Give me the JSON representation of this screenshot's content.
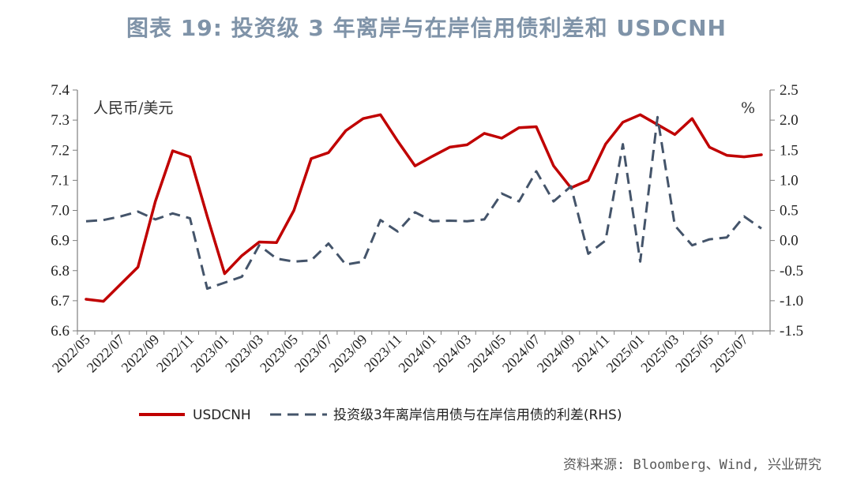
{
  "title": "图表 19: 投资级 3 年离岸与在岸信用债利差和 USDCNH",
  "source": "资料来源: Bloomberg、Wind, 兴业研究",
  "colors": {
    "usdcnh": "#c00000",
    "spread": "#44546a",
    "title": "#7f93a8"
  },
  "chart_data": {
    "type": "line",
    "x": [
      "2022/05",
      "2022/06",
      "2022/07",
      "2022/08",
      "2022/09",
      "2022/10",
      "2022/11",
      "2022/12",
      "2023/01",
      "2023/02",
      "2023/03",
      "2023/04",
      "2023/05",
      "2023/06",
      "2023/07",
      "2023/08",
      "2023/09",
      "2023/10",
      "2023/11",
      "2023/12",
      "2024/01",
      "2024/02",
      "2024/03",
      "2024/04",
      "2024/05",
      "2024/06",
      "2024/07",
      "2024/08",
      "2024/09",
      "2024/10",
      "2024/11",
      "2024/12",
      "2025/01",
      "2025/02",
      "2025/03",
      "2025/04",
      "2025/05",
      "2025/06",
      "2025/07",
      "2025/08"
    ],
    "x_tick_labels": [
      "2022/05",
      "2022/07",
      "2022/09",
      "2022/11",
      "2023/01",
      "2023/03",
      "2023/05",
      "2023/07",
      "2023/09",
      "2023/11",
      "2024/01",
      "2024/03",
      "2024/05",
      "2024/07",
      "2024/09",
      "2024/11",
      "2025/01",
      "2025/03",
      "2025/05",
      "2025/07"
    ],
    "left_axis": {
      "unit_label": "人民币/美元",
      "ylim": [
        6.6,
        7.4
      ],
      "ticks": [
        "6.6",
        "6.7",
        "6.8",
        "6.9",
        "7.0",
        "7.1",
        "7.2",
        "7.3",
        "7.4"
      ]
    },
    "right_axis": {
      "unit_label": "%",
      "ylim": [
        -1.5,
        2.5
      ],
      "ticks": [
        "-1.5",
        "-1.0",
        "-0.5",
        "0.0",
        "0.5",
        "1.0",
        "1.5",
        "2.0",
        "2.5"
      ]
    },
    "series": [
      {
        "name": "USDCNH",
        "axis": "left",
        "style": "solid",
        "points": [
          [
            "2022/05",
            6.705
          ],
          [
            "2022/06",
            6.698
          ],
          [
            "2022/07",
            6.755
          ],
          [
            "2022/08",
            6.812
          ],
          [
            "2022/09",
            7.03
          ],
          [
            "2022/10",
            7.198
          ],
          [
            "2022/11",
            7.178
          ],
          [
            "2022/12",
            6.98
          ],
          [
            "2023/01",
            6.79
          ],
          [
            "2023/02",
            6.85
          ],
          [
            "2023/03",
            6.895
          ],
          [
            "2023/04",
            6.893
          ],
          [
            "2023/05",
            7.0
          ],
          [
            "2023/06",
            7.172
          ],
          [
            "2023/07",
            7.192
          ],
          [
            "2023/08",
            7.265
          ],
          [
            "2023/09",
            7.305
          ],
          [
            "2023/10",
            7.318
          ],
          [
            "2023/11",
            7.23
          ],
          [
            "2023/12",
            7.148
          ],
          [
            "2024/01",
            7.18
          ],
          [
            "2024/02",
            7.21
          ],
          [
            "2024/03",
            7.218
          ],
          [
            "2024/04",
            7.256
          ],
          [
            "2024/05",
            7.24
          ],
          [
            "2024/06",
            7.275
          ],
          [
            "2024/07",
            7.278
          ],
          [
            "2024/08",
            7.148
          ],
          [
            "2024/09",
            7.075
          ],
          [
            "2024/10",
            7.1
          ],
          [
            "2024/11",
            7.22
          ],
          [
            "2024/12",
            7.293
          ],
          [
            "2025/01",
            7.318
          ],
          [
            "2025/02",
            7.285
          ],
          [
            "2025/03",
            7.252
          ],
          [
            "2025/04",
            7.305
          ],
          [
            "2025/05",
            7.21
          ],
          [
            "2025/06",
            7.183
          ],
          [
            "2025/07",
            7.178
          ],
          [
            "2025/08",
            7.185
          ]
        ]
      },
      {
        "name": "投资级3年离岸信用债与在岸信用债的利差(RHS)",
        "axis": "right",
        "style": "dashed",
        "points": [
          [
            "2022/05",
            0.32
          ],
          [
            "2022/06",
            0.34
          ],
          [
            "2022/07",
            0.4
          ],
          [
            "2022/08",
            0.48
          ],
          [
            "2022/09",
            0.35
          ],
          [
            "2022/10",
            0.45
          ],
          [
            "2022/11",
            0.37
          ],
          [
            "2022/12",
            -0.8
          ],
          [
            "2023/01",
            -0.7
          ],
          [
            "2023/02",
            -0.6
          ],
          [
            "2023/03",
            -0.08
          ],
          [
            "2023/04",
            -0.3
          ],
          [
            "2023/05",
            -0.35
          ],
          [
            "2023/06",
            -0.33
          ],
          [
            "2023/07",
            -0.05
          ],
          [
            "2023/08",
            -0.4
          ],
          [
            "2023/09",
            -0.35
          ],
          [
            "2023/10",
            0.34
          ],
          [
            "2023/11",
            0.15
          ],
          [
            "2023/12",
            0.47
          ],
          [
            "2024/01",
            0.32
          ],
          [
            "2024/02",
            0.33
          ],
          [
            "2024/03",
            0.32
          ],
          [
            "2024/04",
            0.35
          ],
          [
            "2024/05",
            0.78
          ],
          [
            "2024/06",
            0.65
          ],
          [
            "2024/07",
            1.15
          ],
          [
            "2024/08",
            0.65
          ],
          [
            "2024/09",
            0.9
          ],
          [
            "2024/10",
            -0.22
          ],
          [
            "2024/11",
            0.0
          ],
          [
            "2024/12",
            1.6
          ],
          [
            "2025/01",
            -0.35
          ],
          [
            "2025/02",
            2.05
          ],
          [
            "2025/03",
            0.25
          ],
          [
            "2025/04",
            -0.08
          ],
          [
            "2025/05",
            0.02
          ],
          [
            "2025/06",
            0.05
          ],
          [
            "2025/07",
            0.4
          ],
          [
            "2025/08",
            0.2
          ]
        ]
      }
    ],
    "legend": {
      "placement": "bottom"
    }
  }
}
